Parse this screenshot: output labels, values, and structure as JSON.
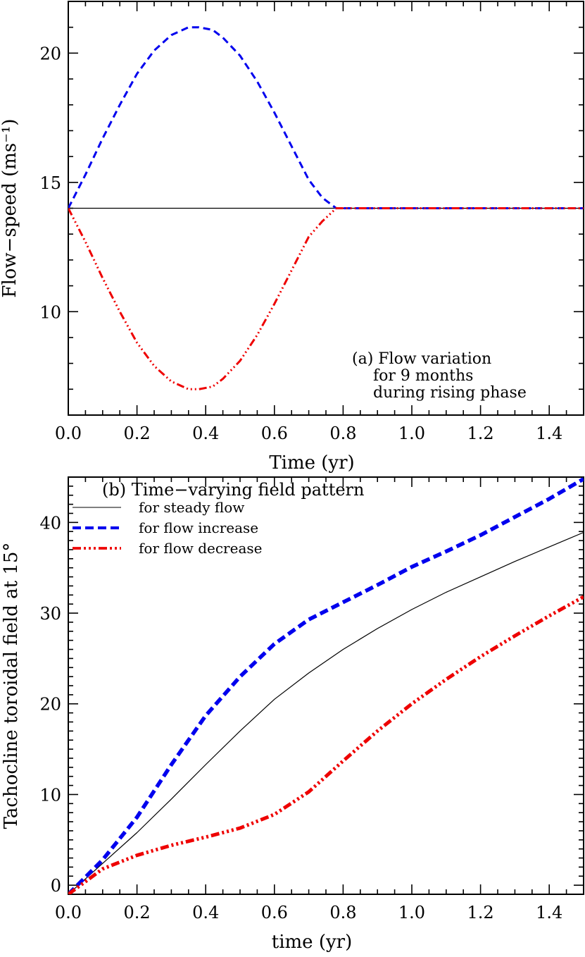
{
  "chart_data": [
    {
      "type": "line",
      "panel": "a",
      "xlabel": "Time (yr)",
      "ylabel": "Flow−speed (ms⁻¹)",
      "xlim": [
        0,
        1.5
      ],
      "ylim": [
        6,
        22
      ],
      "xticks": [
        0.0,
        0.2,
        0.4,
        0.6,
        0.8,
        1.0,
        1.2,
        1.4
      ],
      "xtick_labels": [
        "0.0",
        "0.2",
        "0.4",
        "0.6",
        "0.8",
        "1.0",
        "1.2",
        "1.4"
      ],
      "yticks": [
        10,
        15,
        20
      ],
      "ytick_labels": [
        "10",
        "15",
        "20"
      ],
      "annotation": [
        "(a) Flow variation",
        "for 9 months",
        "during rising phase"
      ],
      "series": [
        {
          "color": "#000000",
          "style": "solid",
          "x": [
            0,
            1.5
          ],
          "y": [
            14,
            14
          ]
        },
        {
          "color": "#0000ee",
          "style": "dashed",
          "x": [
            0,
            0.05,
            0.1,
            0.15,
            0.2,
            0.25,
            0.3,
            0.35,
            0.38,
            0.42,
            0.45,
            0.5,
            0.55,
            0.6,
            0.65,
            0.7,
            0.74,
            0.78,
            0.9,
            1.0,
            1.2,
            1.4,
            1.5
          ],
          "y": [
            14,
            15.3,
            16.7,
            18.0,
            19.2,
            20.1,
            20.7,
            21.0,
            21.0,
            20.9,
            20.6,
            19.9,
            18.9,
            17.7,
            16.4,
            15.1,
            14.4,
            14,
            14,
            14,
            14,
            14,
            14
          ]
        },
        {
          "color": "#ee0000",
          "style": "dash-dot",
          "x": [
            0,
            0.05,
            0.1,
            0.15,
            0.2,
            0.25,
            0.3,
            0.35,
            0.38,
            0.42,
            0.45,
            0.5,
            0.55,
            0.6,
            0.65,
            0.7,
            0.74,
            0.78,
            0.9,
            1.0,
            1.2,
            1.4,
            1.5
          ],
          "y": [
            14,
            12.7,
            11.3,
            10.0,
            8.8,
            7.9,
            7.3,
            7.0,
            7.0,
            7.1,
            7.4,
            8.1,
            9.1,
            10.3,
            11.6,
            12.9,
            13.5,
            14,
            14,
            14,
            14,
            14,
            14
          ]
        }
      ]
    },
    {
      "type": "line",
      "panel": "b",
      "xlabel": "time (yr)",
      "ylabel": "Tachocline toroidal field at 15°",
      "xlim": [
        0,
        1.5
      ],
      "ylim": [
        -1,
        45
      ],
      "xticks": [
        0.0,
        0.2,
        0.4,
        0.6,
        0.8,
        1.0,
        1.2,
        1.4
      ],
      "xtick_labels": [
        "0.0",
        "0.2",
        "0.4",
        "0.6",
        "0.8",
        "1.0",
        "1.2",
        "1.4"
      ],
      "yticks": [
        0,
        10,
        20,
        30,
        40
      ],
      "ytick_labels": [
        "0",
        "10",
        "20",
        "30",
        "40"
      ],
      "legend_title": "(b) Time−varying field pattern",
      "legend_position": "top-left",
      "series": [
        {
          "name": "for steady flow",
          "color": "#000000",
          "style": "solid",
          "x": [
            0,
            0.1,
            0.2,
            0.3,
            0.4,
            0.5,
            0.6,
            0.7,
            0.8,
            0.9,
            1.0,
            1.1,
            1.2,
            1.3,
            1.4,
            1.5
          ],
          "y": [
            -1,
            2.4,
            5.8,
            9.5,
            13.3,
            17.0,
            20.5,
            23.4,
            26.0,
            28.3,
            30.4,
            32.3,
            34.0,
            35.7,
            37.3,
            38.9
          ]
        },
        {
          "name": "for flow increase",
          "color": "#0000ee",
          "style": "dashed",
          "x": [
            0,
            0.1,
            0.2,
            0.3,
            0.4,
            0.5,
            0.6,
            0.7,
            0.8,
            0.9,
            1.0,
            1.1,
            1.2,
            1.3,
            1.4,
            1.5
          ],
          "y": [
            -1,
            2.8,
            7.5,
            13.3,
            18.7,
            23.0,
            26.6,
            29.3,
            31.2,
            33.1,
            35.1,
            36.8,
            38.6,
            40.6,
            42.6,
            44.8
          ]
        },
        {
          "name": "for flow decrease",
          "color": "#ee0000",
          "style": "dash-dot",
          "x": [
            0,
            0.1,
            0.2,
            0.3,
            0.4,
            0.5,
            0.6,
            0.7,
            0.8,
            0.9,
            1.0,
            1.1,
            1.2,
            1.3,
            1.4,
            1.5
          ],
          "y": [
            -1,
            1.8,
            3.3,
            4.4,
            5.3,
            6.3,
            7.8,
            10.3,
            13.7,
            17.0,
            20.0,
            22.7,
            25.2,
            27.5,
            29.7,
            31.8
          ]
        }
      ]
    }
  ]
}
